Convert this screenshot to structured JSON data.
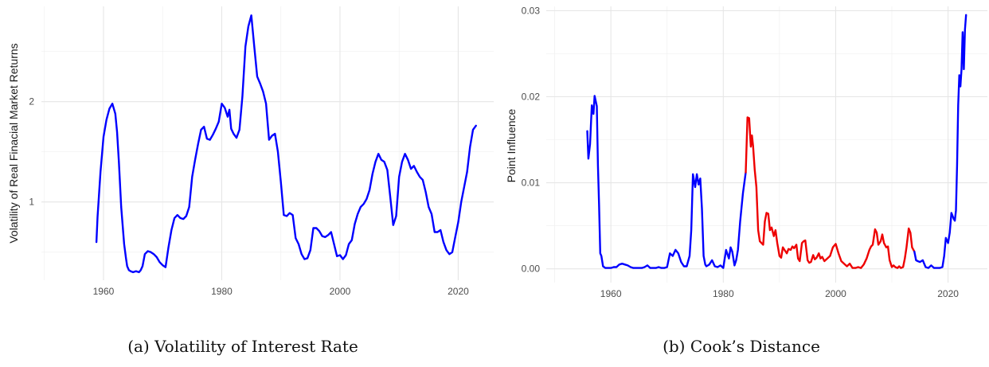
{
  "chart_data": [
    {
      "type": "line",
      "caption": "(a) Volatility of Interest Rate",
      "title": "",
      "xlabel": "",
      "ylabel": "Volatility of Real Finacial Market Returns",
      "xlim": [
        1949.5,
        2026
      ],
      "ylim": [
        0.22,
        2.95
      ],
      "x_ticks": [
        1960,
        1980,
        2000,
        2020
      ],
      "y_ticks": [
        1,
        2
      ],
      "grid": true,
      "legend": "none",
      "series": [
        {
          "color": "#0000ff",
          "x": [
            1958.8,
            1959.0,
            1959.5,
            1960.0,
            1960.5,
            1961.0,
            1961.5,
            1962.0,
            1962.3,
            1962.6,
            1963.0,
            1963.5,
            1963.8,
            1964.0,
            1964.3,
            1964.6,
            1965.0,
            1965.5,
            1966.0,
            1966.3,
            1966.6,
            1967.0,
            1967.5,
            1968.0,
            1968.5,
            1969.0,
            1969.5,
            1970.0,
            1970.5,
            1971.0,
            1971.5,
            1972.0,
            1972.5,
            1973.0,
            1973.5,
            1974.0,
            1974.5,
            1975.0,
            1975.5,
            1976.0,
            1976.5,
            1977.0,
            1977.5,
            1978.0,
            1978.5,
            1979.0,
            1979.5,
            1980.0,
            1980.5,
            1981.0,
            1981.3,
            1981.6,
            1982.0,
            1982.5,
            1983.0,
            1983.5,
            1984.0,
            1984.5,
            1985.0,
            1985.5,
            1986.0,
            1986.5,
            1987.0,
            1987.5,
            1988.0,
            1988.5,
            1989.0,
            1989.5,
            1990.0,
            1990.5,
            1991.0,
            1991.5,
            1992.0,
            1992.5,
            1993.0,
            1993.5,
            1994.0,
            1994.5,
            1995.0,
            1995.5,
            1996.0,
            1996.5,
            1997.0,
            1997.5,
            1998.0,
            1998.5,
            1999.0,
            1999.5,
            2000.0,
            2000.5,
            2001.0,
            2001.5,
            2002.0,
            2002.5,
            2003.0,
            2003.5,
            2004.0,
            2004.5,
            2005.0,
            2005.5,
            2006.0,
            2006.5,
            2007.0,
            2007.5,
            2008.0,
            2008.5,
            2009.0,
            2009.5,
            2010.0,
            2010.5,
            2011.0,
            2011.5,
            2012.0,
            2012.5,
            2013.0,
            2013.5,
            2014.0,
            2014.5,
            2015.0,
            2015.5,
            2016.0,
            2016.5,
            2017.0,
            2017.5,
            2018.0,
            2018.5,
            2019.0,
            2019.5,
            2020.0,
            2020.5,
            2021.0,
            2021.5,
            2022.0,
            2022.5,
            2023.0
          ],
          "y": [
            0.6,
            0.85,
            1.3,
            1.65,
            1.82,
            1.93,
            1.98,
            1.88,
            1.7,
            1.4,
            0.95,
            0.58,
            0.44,
            0.36,
            0.32,
            0.31,
            0.3,
            0.31,
            0.3,
            0.32,
            0.36,
            0.48,
            0.51,
            0.5,
            0.48,
            0.45,
            0.4,
            0.37,
            0.35,
            0.55,
            0.72,
            0.84,
            0.87,
            0.84,
            0.83,
            0.86,
            0.95,
            1.25,
            1.42,
            1.58,
            1.72,
            1.75,
            1.63,
            1.62,
            1.67,
            1.73,
            1.8,
            1.98,
            1.94,
            1.85,
            1.92,
            1.73,
            1.68,
            1.64,
            1.72,
            2.05,
            2.55,
            2.75,
            2.86,
            2.55,
            2.25,
            2.18,
            2.1,
            1.98,
            1.62,
            1.66,
            1.68,
            1.5,
            1.2,
            0.87,
            0.86,
            0.89,
            0.87,
            0.64,
            0.58,
            0.48,
            0.43,
            0.44,
            0.52,
            0.74,
            0.74,
            0.71,
            0.66,
            0.65,
            0.67,
            0.7,
            0.58,
            0.46,
            0.47,
            0.43,
            0.47,
            0.58,
            0.62,
            0.78,
            0.88,
            0.95,
            0.98,
            1.03,
            1.12,
            1.28,
            1.4,
            1.48,
            1.42,
            1.4,
            1.32,
            1.05,
            0.77,
            0.86,
            1.25,
            1.4,
            1.48,
            1.42,
            1.33,
            1.36,
            1.3,
            1.25,
            1.22,
            1.1,
            0.95,
            0.88,
            0.7,
            0.7,
            0.72,
            0.6,
            0.52,
            0.48,
            0.5,
            0.65,
            0.8,
            1.0,
            1.15,
            1.3,
            1.55,
            1.72,
            1.76
          ]
        }
      ]
    },
    {
      "type": "line",
      "caption": "(b) Cook’s Distance",
      "title": "",
      "xlabel": "",
      "ylabel": "Point Influence",
      "xlim": [
        1948.5,
        2027
      ],
      "ylim": [
        -0.0016,
        0.0305
      ],
      "x_ticks": [
        1960,
        1980,
        2000,
        2020
      ],
      "y_ticks": [
        0,
        0.01,
        0.02,
        0.03
      ],
      "y_tick_labels": [
        "0.00",
        "0.01",
        "0.02",
        "0.03"
      ],
      "grid": true,
      "legend": "none",
      "series": [
        {
          "color": "#0000ff",
          "x": [
            1955.8,
            1956.0,
            1956.3,
            1956.6,
            1956.9,
            1957.1,
            1957.3,
            1957.5,
            1957.7,
            1957.9,
            1958.1,
            1958.3,
            1958.6,
            1959.0,
            1959.5,
            1960.0,
            1960.5,
            1961.0,
            1961.5,
            1962.0,
            1962.5,
            1963.0,
            1963.5,
            1964.0,
            1964.5,
            1965.0,
            1965.5,
            1966.0,
            1966.5,
            1967.0,
            1967.5,
            1968.0,
            1968.5,
            1969.0,
            1969.5,
            1970.0,
            1970.5,
            1971.0,
            1971.5,
            1972.0,
            1972.5,
            1973.0,
            1973.5,
            1974.0,
            1974.3,
            1974.6,
            1975.0,
            1975.3,
            1975.6,
            1975.9,
            1976.2,
            1976.5,
            1976.8,
            1977.0,
            1977.5,
            1978.0,
            1978.5,
            1979.0,
            1979.5,
            1980.0,
            1980.5,
            1981.0,
            1981.3,
            1981.6,
            1982.0,
            1982.3,
            1982.6,
            1983.0,
            1983.5,
            1984.0
          ],
          "y": [
            0.016,
            0.0128,
            0.0145,
            0.019,
            0.018,
            0.0201,
            0.0195,
            0.0189,
            0.012,
            0.0075,
            0.0018,
            0.0015,
            0.0003,
            0.0001,
            0.0001,
            0.0001,
            0.0002,
            0.0002,
            0.0005,
            0.0006,
            0.0005,
            0.0004,
            0.0002,
            0.0001,
            0.0001,
            0.0001,
            0.0001,
            0.0002,
            0.0004,
            0.0001,
            0.0001,
            0.0001,
            0.0002,
            0.0001,
            0.0001,
            0.0002,
            0.0018,
            0.0015,
            0.0022,
            0.0018,
            0.0008,
            0.0003,
            0.0003,
            0.0015,
            0.0045,
            0.011,
            0.0095,
            0.011,
            0.0098,
            0.0105,
            0.007,
            0.0015,
            0.0005,
            0.0003,
            0.0005,
            0.001,
            0.0003,
            0.0002,
            0.0004,
            0.0001,
            0.0022,
            0.0012,
            0.0025,
            0.002,
            0.0004,
            0.001,
            0.0022,
            0.0055,
            0.0088,
            0.0112
          ]
        },
        {
          "color": "#ee0000",
          "x": [
            1984.0,
            1984.3,
            1984.6,
            1984.9,
            1985.1,
            1985.3,
            1985.6,
            1985.9,
            1986.2,
            1986.5,
            1986.8,
            1987.1,
            1987.4,
            1987.7,
            1988.0,
            1988.3,
            1988.6,
            1989.0,
            1989.3,
            1989.6,
            1990.0,
            1990.3,
            1990.6,
            1991.0,
            1991.3,
            1991.6,
            1992.0,
            1992.3,
            1992.6,
            1993.0,
            1993.3,
            1993.6,
            1994.0,
            1994.3,
            1994.6,
            1995.0,
            1995.3,
            1995.6,
            1996.0,
            1996.3,
            1996.6,
            1997.0,
            1997.3,
            1997.6,
            1998.0,
            1998.5,
            1999.0,
            1999.5,
            2000.0,
            2000.5,
            2001.0,
            2001.5,
            2002.0,
            2002.5,
            2003.0,
            2003.5,
            2004.0,
            2004.5,
            2005.0,
            2005.5,
            2006.0,
            2006.3,
            2006.6,
            2007.0,
            2007.3,
            2007.6,
            2008.0,
            2008.3,
            2008.6,
            2009.0,
            2009.3,
            2009.6,
            2010.0,
            2010.3,
            2010.6,
            2011.0,
            2011.3,
            2011.6,
            2012.0,
            2012.3,
            2012.6,
            2013.0,
            2013.3,
            2013.6,
            2014.0
          ],
          "y": [
            0.0112,
            0.0176,
            0.0175,
            0.0142,
            0.0155,
            0.0143,
            0.0115,
            0.0095,
            0.0045,
            0.0032,
            0.003,
            0.0028,
            0.0055,
            0.0065,
            0.0064,
            0.0045,
            0.0048,
            0.0038,
            0.0045,
            0.003,
            0.0015,
            0.0013,
            0.0025,
            0.0021,
            0.0018,
            0.0023,
            0.0022,
            0.0026,
            0.0024,
            0.0028,
            0.0012,
            0.0009,
            0.003,
            0.0032,
            0.0033,
            0.001,
            0.0007,
            0.0008,
            0.0016,
            0.0011,
            0.0013,
            0.0018,
            0.0012,
            0.0014,
            0.0009,
            0.0012,
            0.0015,
            0.0025,
            0.0029,
            0.0018,
            0.0009,
            0.0006,
            0.0003,
            0.0006,
            0.0001,
            0.0001,
            0.0002,
            0.0001,
            0.0005,
            0.0012,
            0.0022,
            0.0026,
            0.0028,
            0.0046,
            0.0042,
            0.0028,
            0.0032,
            0.004,
            0.003,
            0.0025,
            0.0026,
            0.001,
            0.0002,
            0.0004,
            0.0002,
            0.0001,
            0.0003,
            0.0001,
            0.0002,
            0.0012,
            0.0025,
            0.0047,
            0.0042,
            0.0025,
            0.002
          ]
        },
        {
          "color": "#0000ff",
          "x": [
            2014.0,
            2014.3,
            2014.6,
            2015.0,
            2015.5,
            2016.0,
            2016.5,
            2017.0,
            2017.5,
            2018.0,
            2018.5,
            2019.0,
            2019.3,
            2019.6,
            2020.0,
            2020.3,
            2020.6,
            2021.0,
            2021.2,
            2021.4,
            2021.6,
            2021.8,
            2022.0,
            2022.2,
            2022.4,
            2022.6,
            2022.8,
            2023.0,
            2023.2
          ],
          "y": [
            0.002,
            0.001,
            0.0009,
            0.0008,
            0.001,
            0.0002,
            0.0001,
            0.0004,
            0.0001,
            0.0001,
            0.0001,
            0.0002,
            0.0015,
            0.0036,
            0.003,
            0.0042,
            0.0065,
            0.0058,
            0.0056,
            0.0068,
            0.012,
            0.019,
            0.0225,
            0.0212,
            0.0232,
            0.0275,
            0.0232,
            0.0278,
            0.0295
          ]
        }
      ]
    }
  ]
}
